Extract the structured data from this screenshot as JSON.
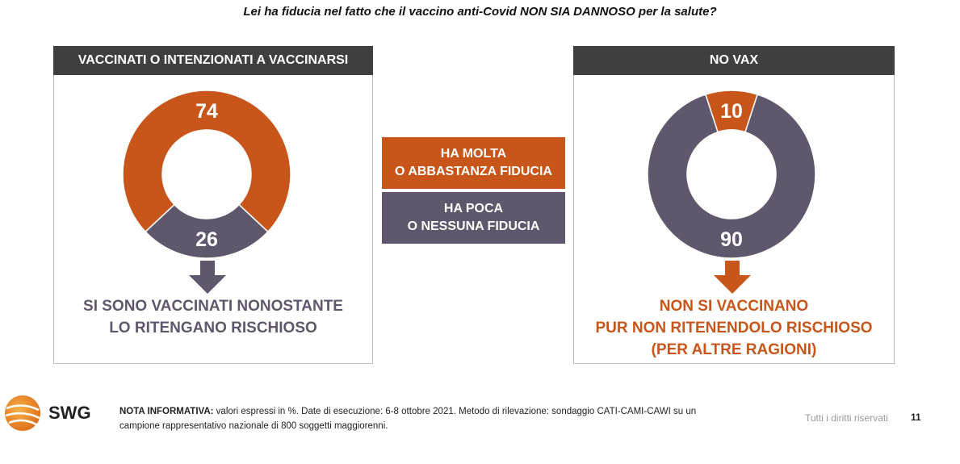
{
  "title": "Lei ha fiducia nel fatto che il vaccino anti-Covid NON SIA DANNOSO per la salute?",
  "colors": {
    "orange": "#c8561b",
    "purple": "#5f586d",
    "header": "#3f3f3f"
  },
  "legend": {
    "high_line1": "HA MOLTA",
    "high_line2": "O ABBASTANZA FIDUCIA",
    "low_line1": "HA POCA",
    "low_line2": "O NESSUNA FIDUCIA"
  },
  "panels": {
    "left": {
      "header": "VACCINATI O INTENZIONATI A VACCINARSI",
      "caption_line1": "SI SONO VACCINATI NONOSTANTE",
      "caption_line2": "LO RITENGANO RISCHIOSO"
    },
    "right": {
      "header": "NO VAX",
      "caption_line1": "NON SI VACCINANO",
      "caption_line2": "PUR NON RITENENDOLO RISCHIOSO",
      "caption_line3": "(PER ALTRE RAGIONI)"
    }
  },
  "chart_data": [
    {
      "type": "pie",
      "subtype": "donut",
      "title": "VACCINATI O INTENZIONATI A VACCINARSI",
      "categories": [
        "HA MOLTA O ABBASTANZA FIDUCIA",
        "HA POCA O NESSUNA FIDUCIA"
      ],
      "values": [
        74,
        26
      ],
      "colors": [
        "#c8561b",
        "#5f586d"
      ]
    },
    {
      "type": "pie",
      "subtype": "donut",
      "title": "NO VAX",
      "categories": [
        "HA MOLTA O ABBASTANZA FIDUCIA",
        "HA POCA O NESSUNA FIDUCIA"
      ],
      "values": [
        10,
        90
      ],
      "colors": [
        "#c8561b",
        "#5f586d"
      ]
    }
  ],
  "footer": {
    "brand": "SWG",
    "note_label": "NOTA INFORMATIVA:",
    "note_text": " valori espressi in %. Date di esecuzione: 6-8 ottobre 2021. Metodo di rilevazione: sondaggio CATI-CAMI-CAWI su un campione rappresentativo nazionale di 800 soggetti maggiorenni.",
    "rights": "Tutti i diritti riservati",
    "page_number": "11"
  }
}
